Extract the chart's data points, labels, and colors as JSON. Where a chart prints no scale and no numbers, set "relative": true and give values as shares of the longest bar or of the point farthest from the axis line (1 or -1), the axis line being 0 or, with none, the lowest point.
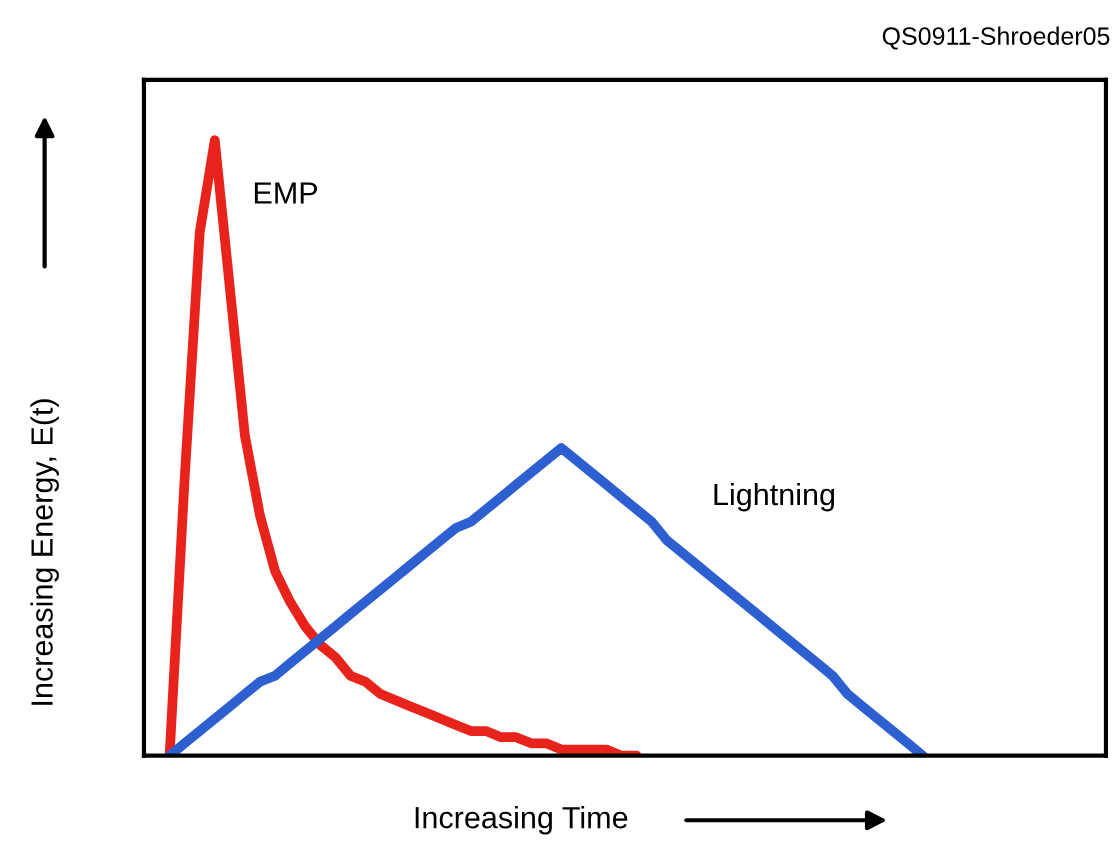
{
  "chart_data": {
    "type": "line",
    "relative": true,
    "xlabel": "Increasing Time",
    "ylabel": "Increasing Energy, E(t)",
    "annotations": [
      "QS0911-Shroeder05"
    ],
    "categories": [
      null,
      null,
      null,
      null,
      null,
      null,
      null,
      null,
      null,
      null,
      null,
      null,
      null,
      null,
      null,
      null,
      null,
      null,
      null,
      null,
      null,
      null,
      null,
      null,
      null,
      null,
      null,
      null,
      null,
      null,
      null,
      null,
      null,
      null,
      null,
      null,
      null,
      null,
      null,
      null,
      null,
      null,
      null,
      null,
      null,
      null,
      null,
      null,
      null,
      null,
      null
    ],
    "series": [
      {
        "name": "EMP",
        "color": "#e8231c",
        "values": [
          0,
          0.45,
          0.85,
          1,
          0.76,
          0.52,
          0.39,
          0.3,
          0.25,
          0.21,
          0.18,
          0.16,
          0.13,
          0.12,
          0.1,
          0.09,
          0.08,
          0.07,
          0.06,
          0.05,
          0.04,
          0.04,
          0.03,
          0.03,
          0.02,
          0.02,
          0.01,
          0.01,
          0.01,
          0.01,
          0,
          0,
          null,
          null,
          null,
          null,
          null,
          null,
          null,
          null,
          null,
          null,
          null,
          null,
          null,
          null,
          null,
          null,
          null,
          null,
          null
        ]
      },
      {
        "name": "Lightning",
        "color": "#2e5fd1",
        "values": [
          0,
          0.02,
          0.04,
          0.06,
          0.08,
          0.1,
          0.12,
          0.13,
          0.15,
          0.17,
          0.19,
          0.21,
          0.23,
          0.25,
          0.27,
          0.29,
          0.31,
          0.33,
          0.35,
          0.37,
          0.38,
          0.4,
          0.42,
          0.44,
          0.46,
          0.48,
          0.5,
          0.48,
          0.46,
          0.44,
          0.42,
          0.4,
          0.38,
          0.35,
          0.33,
          0.31,
          0.29,
          0.27,
          0.25,
          0.23,
          0.21,
          0.19,
          0.17,
          0.15,
          0.13,
          0.1,
          0.08,
          0.06,
          0.04,
          0.02,
          0
        ]
      }
    ]
  }
}
